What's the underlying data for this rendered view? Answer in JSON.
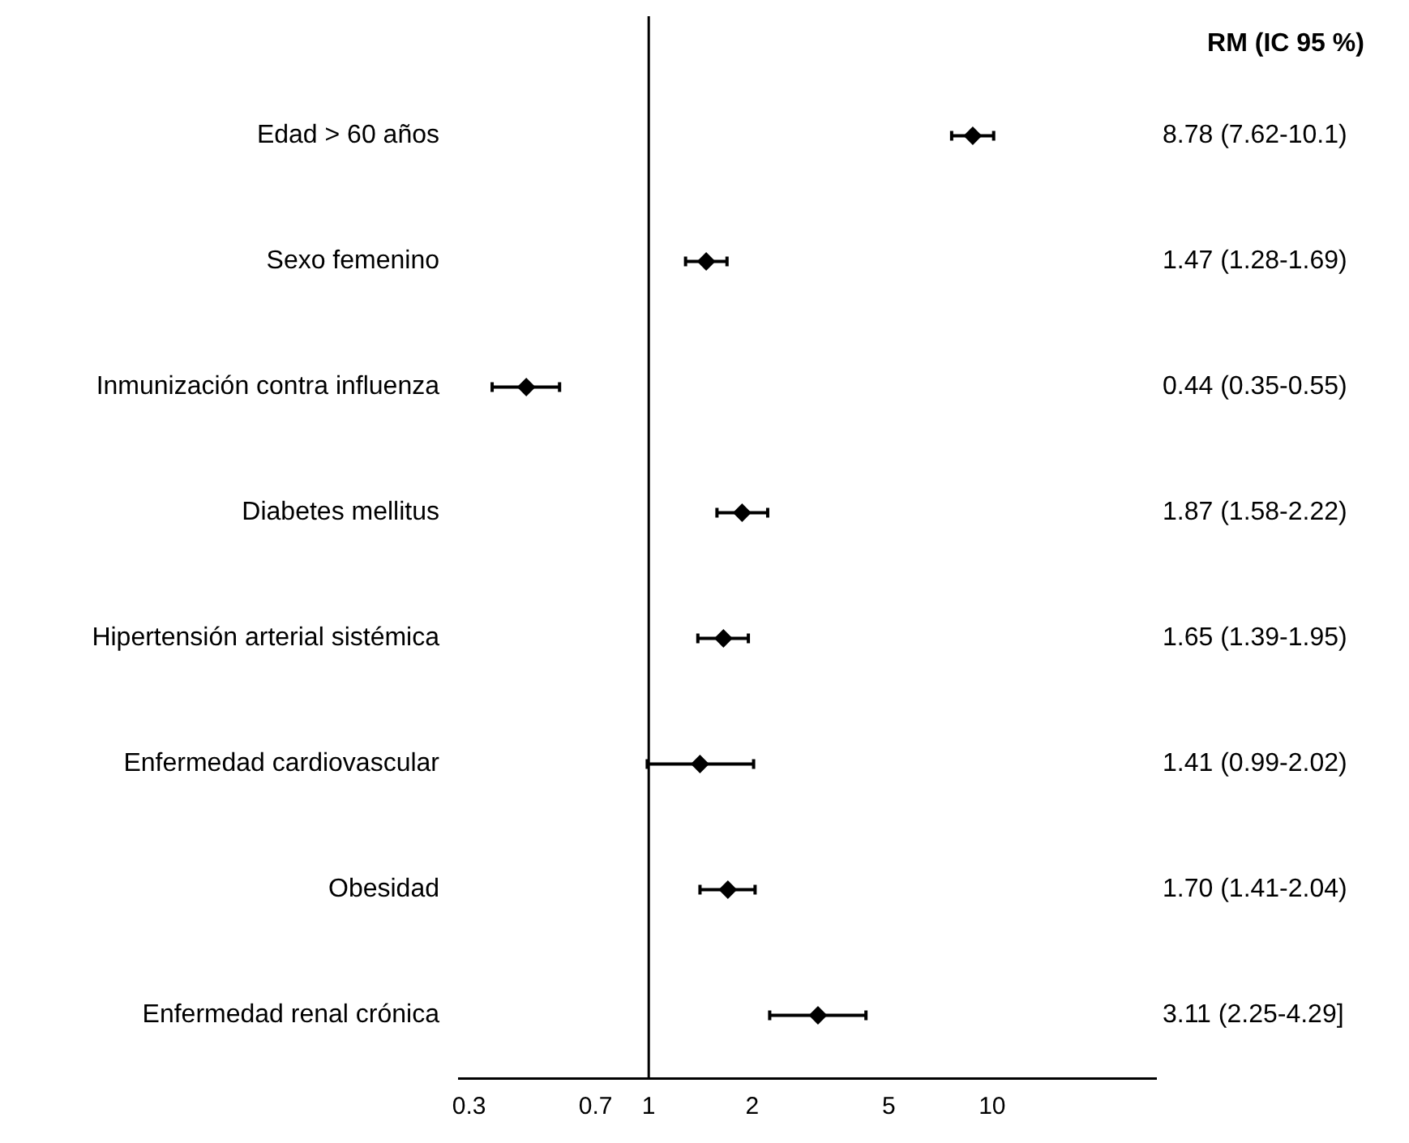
{
  "chart_data": {
    "type": "scatter",
    "orientation": "horizontal",
    "categories": [
      "Edad > 60 años",
      "Sexo femenino",
      "Inmunización contra influenza",
      "Diabetes mellitus",
      "Hipertensión arterial sistémica",
      "Enfermedad cardiovascular",
      "Obesidad",
      "Enfermedad renal crónica"
    ],
    "values": [
      8.78,
      1.47,
      0.44,
      1.87,
      1.65,
      1.41,
      1.7,
      3.11
    ],
    "errors": [
      [
        7.62,
        10.1
      ],
      [
        1.28,
        1.69
      ],
      [
        0.35,
        0.55
      ],
      [
        1.58,
        2.22
      ],
      [
        1.39,
        1.95
      ],
      [
        0.99,
        2.02
      ],
      [
        1.41,
        2.04
      ],
      [
        2.25,
        4.29
      ]
    ],
    "value_labels": [
      "8.78 (7.62-10.1)",
      "1.47 (1.28-1.69)",
      "0.44 (0.35-0.55)",
      "1.87 (1.58-2.22)",
      "1.65 (1.39-1.95)",
      "1.41 (0.99-2.02)",
      "1.70 (1.41-2.04)",
      "3.11 (2.25-4.29]"
    ],
    "color": "#000000",
    "marker": "diamond",
    "xlim": [
      0.28,
      30
    ],
    "xticks": [
      0.3,
      0.7,
      1,
      2,
      5,
      10
    ],
    "log": "x",
    "ref_lines": [
      {
        "axis": "x",
        "value": 1,
        "color": "#000000"
      }
    ],
    "annotations": [
      "RM (IC 95 %)"
    ],
    "grid": false,
    "legend": false
  }
}
